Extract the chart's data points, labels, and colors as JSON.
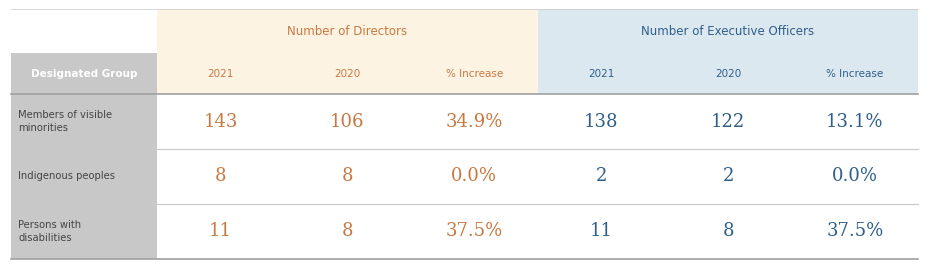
{
  "header1_text": "Number of Directors",
  "header2_text": "Number of Executive Officers",
  "col_header": "Designated Group",
  "subheaders": [
    "2021",
    "2020",
    "% Increase",
    "2021",
    "2020",
    "% Increase"
  ],
  "rows": [
    {
      "label": "Members of visible\nminorities",
      "dir_2021": "143",
      "dir_2020": "106",
      "dir_pct": "34.9%",
      "exec_2021": "138",
      "exec_2020": "122",
      "exec_pct": "13.1%"
    },
    {
      "label": "Indigenous peoples",
      "dir_2021": "8",
      "dir_2020": "8",
      "dir_pct": "0.0%",
      "exec_2021": "2",
      "exec_2020": "2",
      "exec_pct": "0.0%"
    },
    {
      "label": "Persons with\ndisabilities",
      "dir_2021": "11",
      "dir_2020": "8",
      "dir_pct": "37.5%",
      "exec_2021": "11",
      "exec_2020": "8",
      "exec_pct": "37.5%"
    }
  ],
  "color_directors_bg": "#fdf3e3",
  "color_exec_bg": "#dce8f0",
  "color_header_text": "#c87941",
  "color_data_directors": "#c87941",
  "color_data_exec": "#2e5f8a",
  "color_subheader_text_directors": "#c87941",
  "color_subheader_text_exec": "#2e5f8a",
  "color_row_label_bg": "#c8c8c8",
  "color_label_text": "#444444",
  "color_line_light": "#c8c8c8",
  "color_line_dark": "#a0a0a0",
  "fig_width": 9.29,
  "fig_height": 2.68
}
